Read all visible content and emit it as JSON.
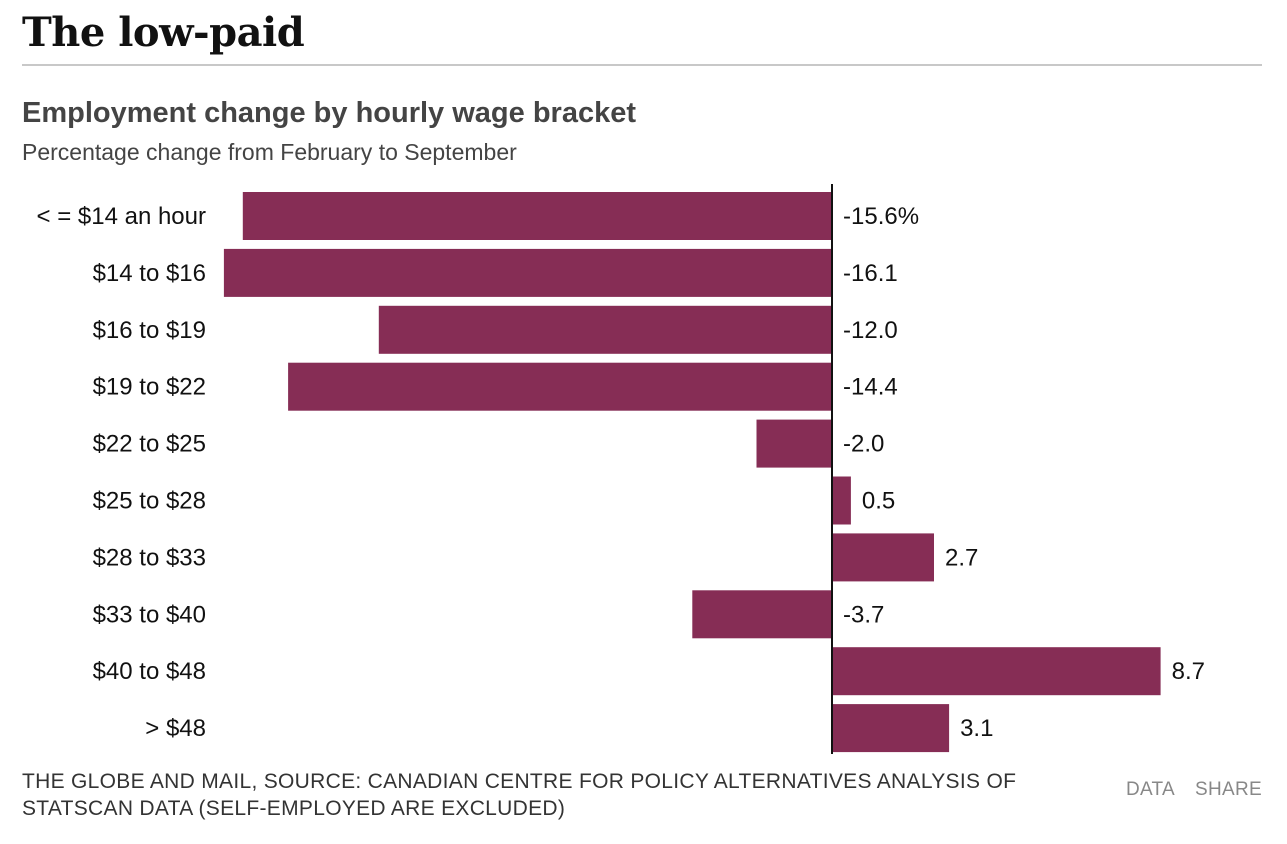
{
  "page": {
    "headline": "The low-paid"
  },
  "chart_data": {
    "type": "bar",
    "orientation": "horizontal",
    "title": "Employment change by hourly wage bracket",
    "subtitle": "Percentage change from February to September",
    "categories": [
      "< = $14 an hour",
      "$14 to $16",
      "$16 to $19",
      "$19 to $22",
      "$22 to $25",
      "$25 to $28",
      "$28 to $33",
      "$33 to $40",
      "$40 to $48",
      "> $48"
    ],
    "values": [
      -15.6,
      -16.1,
      -12.0,
      -14.4,
      -2.0,
      0.5,
      2.7,
      -3.7,
      8.7,
      3.1
    ],
    "value_labels": [
      "-15.6%",
      "-16.1",
      "-12.0",
      "-14.4",
      "-2.0",
      "0.5",
      "2.7",
      "-3.7",
      "8.7",
      "3.1"
    ],
    "xlim": [
      -16.1,
      8.7
    ],
    "bar_color": "#862d55",
    "axis_color": "#111111",
    "grid": false,
    "legend": "none"
  },
  "footer": {
    "source": "THE GLOBE AND MAIL, SOURCE: CANADIAN CENTRE FOR POLICY ALTERNATIVES ANALYSIS OF STATSCAN DATA (SELF-EMPLOYED ARE EXCLUDED)",
    "data_link": "DATA",
    "share_link": "SHARE"
  }
}
